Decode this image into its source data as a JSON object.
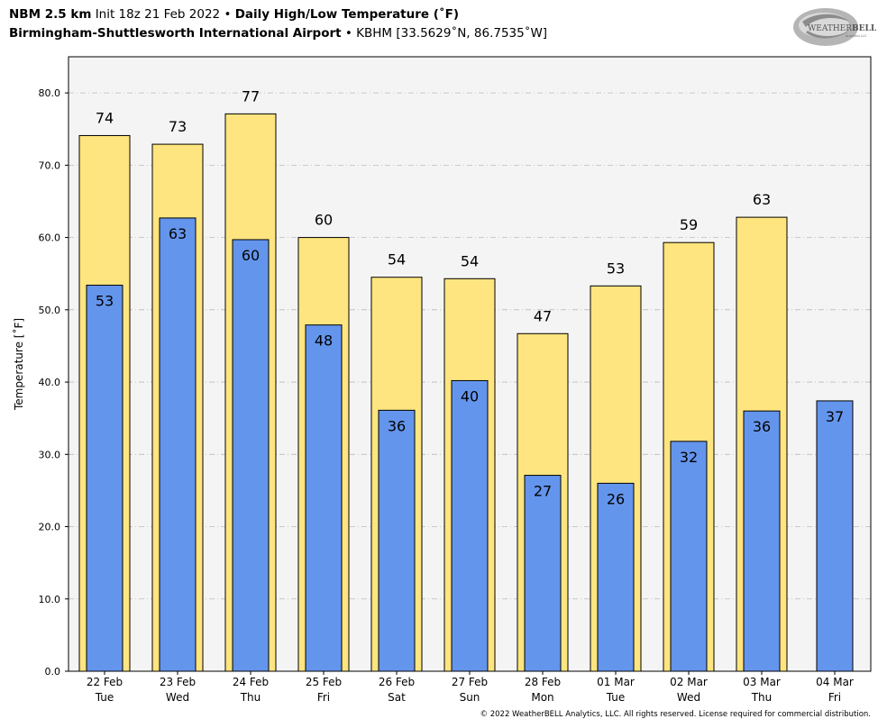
{
  "header": {
    "model": "NBM 2.5 km",
    "init": "Init 18z 21 Feb 2022",
    "bullet": "•",
    "product": "Daily High/Low Temperature (˚F)",
    "station_name": "Birmingham-Shuttlesworth International Airport",
    "station_info": "KBHM [33.5629˚N, 86.7535˚W]"
  },
  "logo": {
    "text_a": "WEATHER",
    "text_b": "BELL",
    "sub": "Analytics LLC"
  },
  "copyright": "© 2022 WeatherBELL Analytics, LLC. All rights reserved. License required for commercial distribution.",
  "colors": {
    "high": "#ffe57f",
    "low": "#6495ed",
    "plot_bg": "#f4f4f4",
    "grid": "#bbbbbb"
  },
  "chart_data": {
    "type": "bar",
    "title": "Daily High/Low Temperature (˚F)",
    "ylabel": "Temperature [˚F]",
    "ylim": [
      0,
      85
    ],
    "yticks": [
      "0.0",
      "10.0",
      "20.0",
      "30.0",
      "40.0",
      "50.0",
      "60.0",
      "70.0",
      "80.0"
    ],
    "grid": true,
    "categories": [
      "22 Feb",
      "23 Feb",
      "24 Feb",
      "25 Feb",
      "26 Feb",
      "27 Feb",
      "28 Feb",
      "01 Mar",
      "02 Mar",
      "03 Mar",
      "04 Mar"
    ],
    "weekdays": [
      "Tue",
      "Wed",
      "Thu",
      "Fri",
      "Sat",
      "Sun",
      "Mon",
      "Tue",
      "Wed",
      "Thu",
      "Fri"
    ],
    "series": [
      {
        "values": [
          74.1,
          72.9,
          77.1,
          60.0,
          54.5,
          54.3,
          46.7,
          53.3,
          59.3,
          62.8,
          null
        ],
        "labels": [
          "74",
          "73",
          "77",
          "60",
          "54",
          "54",
          "47",
          "53",
          "59",
          "63",
          ""
        ]
      },
      {
        "values": [
          53.4,
          62.7,
          59.7,
          47.9,
          36.1,
          40.2,
          27.1,
          26.0,
          31.8,
          36.0,
          37.4
        ],
        "labels": [
          "53",
          "63",
          "60",
          "48",
          "36",
          "40",
          "27",
          "26",
          "32",
          "36",
          "37"
        ]
      }
    ]
  }
}
